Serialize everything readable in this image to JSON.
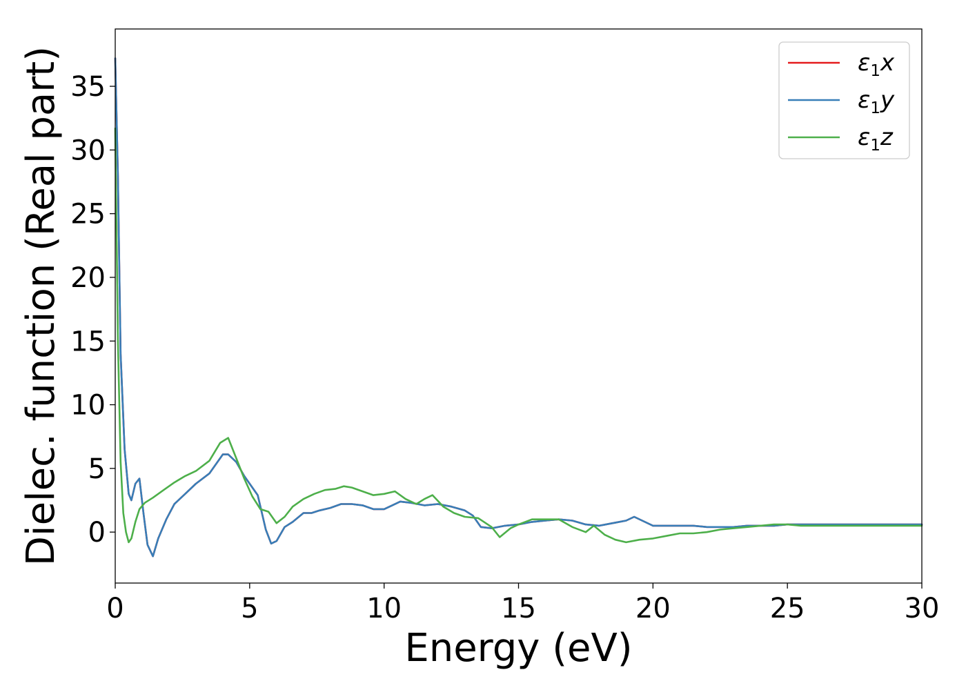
{
  "chart_data": {
    "type": "line",
    "xlabel": "Energy (eV)",
    "ylabel": "Dielec. function (Real part)",
    "xlim": [
      0,
      30
    ],
    "ylim": [
      -4,
      39.5
    ],
    "xticks": [
      0,
      5,
      10,
      15,
      20,
      25,
      30
    ],
    "yticks": [
      0,
      5,
      10,
      15,
      20,
      25,
      30,
      35
    ],
    "grid": false,
    "legend_position": "top-right",
    "colors": {
      "x": "#e41a1c",
      "y": "#377eb8",
      "z": "#4daf4a"
    },
    "series": [
      {
        "name": "ε1x",
        "legend_main": "ε",
        "legend_sub": "1",
        "legend_suffix": "x",
        "color": "#e41a1c",
        "x": [
          0,
          0.1,
          0.2,
          0.35,
          0.5,
          0.6,
          0.75,
          0.9,
          1.05,
          1.2,
          1.4,
          1.6,
          1.9,
          2.2,
          2.6,
          3.0,
          3.5,
          4.0,
          4.2,
          4.5,
          4.8,
          5.0,
          5.3,
          5.6,
          5.8,
          6.0,
          6.3,
          6.6,
          7.0,
          7.3,
          7.6,
          8.0,
          8.4,
          8.8,
          9.2,
          9.6,
          10.0,
          10.3,
          10.6,
          11.0,
          11.5,
          12.0,
          12.5,
          13.0,
          13.3,
          13.6,
          14.0,
          14.5,
          15.0,
          15.5,
          16.0,
          16.5,
          17.0,
          17.5,
          18.0,
          18.5,
          19.0,
          19.3,
          19.6,
          20.0,
          20.5,
          21.0,
          21.5,
          22.0,
          22.5,
          23.0,
          23.5,
          24.0,
          24.5,
          25.0,
          25.5,
          26.0,
          26.5,
          27.0,
          27.5,
          28.0,
          28.5,
          29.0,
          29.5,
          30.0
        ],
        "values": [
          37.2,
          28.0,
          14.0,
          6.5,
          3.0,
          2.5,
          3.8,
          4.2,
          1.5,
          -1.0,
          -1.9,
          -0.5,
          1.0,
          2.2,
          3.0,
          3.8,
          4.6,
          6.1,
          6.1,
          5.5,
          4.4,
          3.8,
          2.9,
          0.2,
          -0.9,
          -0.7,
          0.4,
          0.8,
          1.5,
          1.5,
          1.7,
          1.9,
          2.2,
          2.2,
          2.1,
          1.8,
          1.8,
          2.1,
          2.4,
          2.3,
          2.1,
          2.2,
          2.0,
          1.7,
          1.3,
          0.4,
          0.3,
          0.5,
          0.6,
          0.8,
          0.9,
          1.0,
          0.9,
          0.6,
          0.5,
          0.7,
          0.9,
          1.2,
          0.9,
          0.5,
          0.5,
          0.5,
          0.5,
          0.4,
          0.4,
          0.4,
          0.5,
          0.5,
          0.5,
          0.6,
          0.6,
          0.6,
          0.6,
          0.6,
          0.6,
          0.6,
          0.6,
          0.6,
          0.6,
          0.6
        ]
      },
      {
        "name": "ε1y",
        "legend_main": "ε",
        "legend_sub": "1",
        "legend_suffix": "y",
        "color": "#377eb8",
        "x": [
          0,
          0.1,
          0.2,
          0.35,
          0.5,
          0.6,
          0.75,
          0.9,
          1.05,
          1.2,
          1.4,
          1.6,
          1.9,
          2.2,
          2.6,
          3.0,
          3.5,
          4.0,
          4.2,
          4.5,
          4.8,
          5.0,
          5.3,
          5.6,
          5.8,
          6.0,
          6.3,
          6.6,
          7.0,
          7.3,
          7.6,
          8.0,
          8.4,
          8.8,
          9.2,
          9.6,
          10.0,
          10.3,
          10.6,
          11.0,
          11.5,
          12.0,
          12.5,
          13.0,
          13.3,
          13.6,
          14.0,
          14.5,
          15.0,
          15.5,
          16.0,
          16.5,
          17.0,
          17.5,
          18.0,
          18.5,
          19.0,
          19.3,
          19.6,
          20.0,
          20.5,
          21.0,
          21.5,
          22.0,
          22.5,
          23.0,
          23.5,
          24.0,
          24.5,
          25.0,
          25.5,
          26.0,
          26.5,
          27.0,
          27.5,
          28.0,
          28.5,
          29.0,
          29.5,
          30.0
        ],
        "values": [
          37.2,
          28.0,
          14.0,
          6.5,
          3.0,
          2.5,
          3.8,
          4.2,
          1.5,
          -1.0,
          -1.9,
          -0.5,
          1.0,
          2.2,
          3.0,
          3.8,
          4.6,
          6.1,
          6.1,
          5.5,
          4.4,
          3.8,
          2.9,
          0.2,
          -0.9,
          -0.7,
          0.4,
          0.8,
          1.5,
          1.5,
          1.7,
          1.9,
          2.2,
          2.2,
          2.1,
          1.8,
          1.8,
          2.1,
          2.4,
          2.3,
          2.1,
          2.2,
          2.0,
          1.7,
          1.3,
          0.4,
          0.3,
          0.5,
          0.6,
          0.8,
          0.9,
          1.0,
          0.9,
          0.6,
          0.5,
          0.7,
          0.9,
          1.2,
          0.9,
          0.5,
          0.5,
          0.5,
          0.5,
          0.4,
          0.4,
          0.4,
          0.5,
          0.5,
          0.5,
          0.6,
          0.6,
          0.6,
          0.6,
          0.6,
          0.6,
          0.6,
          0.6,
          0.6,
          0.6,
          0.6
        ]
      },
      {
        "name": "ε1z",
        "legend_main": "ε",
        "legend_sub": "1",
        "legend_suffix": "z",
        "color": "#4daf4a",
        "x": [
          0,
          0.1,
          0.2,
          0.3,
          0.4,
          0.5,
          0.6,
          0.75,
          0.9,
          1.1,
          1.4,
          1.8,
          2.2,
          2.6,
          3.0,
          3.5,
          3.9,
          4.2,
          4.5,
          4.8,
          5.1,
          5.4,
          5.7,
          6.0,
          6.3,
          6.6,
          7.0,
          7.4,
          7.8,
          8.2,
          8.5,
          8.8,
          9.2,
          9.6,
          10.0,
          10.4,
          10.8,
          11.2,
          11.5,
          11.8,
          12.2,
          12.6,
          13.0,
          13.5,
          14.0,
          14.3,
          14.7,
          15.0,
          15.5,
          16.0,
          16.5,
          17.0,
          17.5,
          17.8,
          18.2,
          18.6,
          19.0,
          19.5,
          20.0,
          20.5,
          21.0,
          21.5,
          22.0,
          22.5,
          23.0,
          23.5,
          24.0,
          24.5,
          25.0,
          25.5,
          26.0,
          26.5,
          27.0,
          27.5,
          28.0,
          28.5,
          29.0,
          29.5,
          30.0
        ],
        "values": [
          31.7,
          15.0,
          5.5,
          1.5,
          0.0,
          -0.8,
          -0.5,
          0.8,
          1.8,
          2.3,
          2.7,
          3.3,
          3.9,
          4.4,
          4.8,
          5.6,
          7.0,
          7.4,
          5.8,
          4.2,
          2.8,
          1.8,
          1.6,
          0.7,
          1.2,
          2.0,
          2.6,
          3.0,
          3.3,
          3.4,
          3.6,
          3.5,
          3.2,
          2.9,
          3.0,
          3.2,
          2.6,
          2.2,
          2.6,
          2.9,
          2.0,
          1.5,
          1.2,
          1.1,
          0.4,
          -0.4,
          0.3,
          0.6,
          1.0,
          1.0,
          1.0,
          0.4,
          0.0,
          0.5,
          -0.2,
          -0.6,
          -0.8,
          -0.6,
          -0.5,
          -0.3,
          -0.1,
          -0.1,
          0.0,
          0.2,
          0.3,
          0.4,
          0.5,
          0.6,
          0.6,
          0.5,
          0.5,
          0.5,
          0.5,
          0.5,
          0.5,
          0.5,
          0.5,
          0.5,
          0.5
        ]
      }
    ]
  }
}
